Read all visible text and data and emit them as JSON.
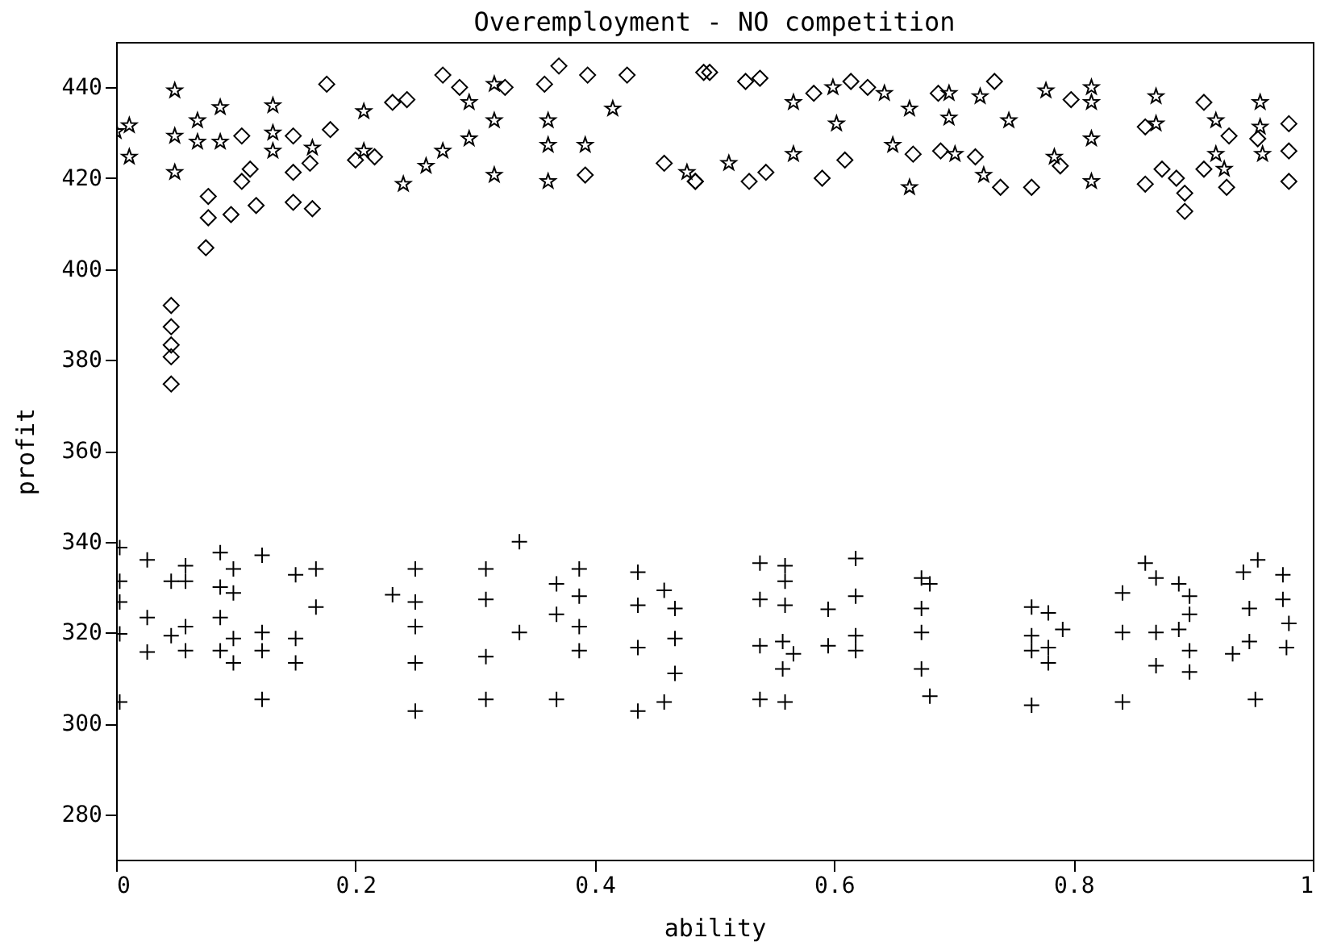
{
  "chart_data": {
    "type": "scatter",
    "title": "Overemployment - NO competition",
    "xlabel": "ability",
    "ylabel": "profit",
    "xlim": [
      0,
      1
    ],
    "ylim": [
      270,
      450
    ],
    "xticks": [
      0,
      0.2,
      0.4,
      0.6,
      0.8,
      1
    ],
    "yticks": [
      280,
      300,
      320,
      340,
      360,
      380,
      400,
      420,
      440
    ],
    "grid": false,
    "series": [
      {
        "color": "#000000",
        "marker": "star",
        "x": [
          0.0,
          0.011,
          0.011,
          0.049,
          0.049,
          0.049,
          0.068,
          0.068,
          0.087,
          0.087,
          0.131,
          0.131,
          0.131,
          0.164,
          0.207,
          0.207,
          0.24,
          0.259,
          0.273,
          0.295,
          0.295,
          0.316,
          0.316,
          0.316,
          0.361,
          0.361,
          0.361,
          0.392,
          0.415,
          0.477,
          0.512,
          0.566,
          0.566,
          0.599,
          0.602,
          0.642,
          0.649,
          0.663,
          0.663,
          0.696,
          0.696,
          0.701,
          0.722,
          0.725,
          0.746,
          0.777,
          0.784,
          0.815,
          0.815,
          0.815,
          0.815,
          0.869,
          0.869,
          0.919,
          0.919,
          0.956,
          0.958,
          0.956,
          0.926
        ],
        "values": [
          430.3,
          431.6,
          424.7,
          439.3,
          429.3,
          421.3,
          432.7,
          428.0,
          435.6,
          428.0,
          436.0,
          430.0,
          426.0,
          426.7,
          434.7,
          426.0,
          418.7,
          422.7,
          426.0,
          436.7,
          428.7,
          440.7,
          432.7,
          420.7,
          432.7,
          419.3,
          427.3,
          427.3,
          435.3,
          421.3,
          423.3,
          436.7,
          425.3,
          440.0,
          432.0,
          438.7,
          427.3,
          418.0,
          435.3,
          438.7,
          433.3,
          425.3,
          438.0,
          420.7,
          432.7,
          439.3,
          424.7,
          440.0,
          436.7,
          428.7,
          419.3,
          438.0,
          432.0,
          432.7,
          425.3,
          436.7,
          425.3,
          431.3,
          422.0
        ]
      },
      {
        "color": "#000000",
        "marker": "diamond",
        "x": [
          0.046,
          0.046,
          0.046,
          0.046,
          0.046,
          0.077,
          0.077,
          0.075,
          0.096,
          0.105,
          0.112,
          0.117,
          0.148,
          0.148,
          0.164,
          0.162,
          0.148,
          0.105,
          0.176,
          0.179,
          0.2,
          0.216,
          0.231,
          0.243,
          0.273,
          0.287,
          0.325,
          0.37,
          0.358,
          0.394,
          0.392,
          0.427,
          0.458,
          0.484,
          0.491,
          0.496,
          0.484,
          0.526,
          0.529,
          0.538,
          0.543,
          0.583,
          0.59,
          0.614,
          0.609,
          0.628,
          0.666,
          0.687,
          0.689,
          0.718,
          0.734,
          0.739,
          0.765,
          0.789,
          0.798,
          0.86,
          0.86,
          0.874,
          0.886,
          0.893,
          0.893,
          0.909,
          0.909,
          0.928,
          0.93,
          0.954,
          0.98,
          0.98,
          0.98
        ],
        "values": [
          392.0,
          387.3,
          383.3,
          380.7,
          374.7,
          416.0,
          411.3,
          404.7,
          412.0,
          419.3,
          422.0,
          414.0,
          421.3,
          414.7,
          413.3,
          423.3,
          429.3,
          429.3,
          440.7,
          430.7,
          424.0,
          424.7,
          436.7,
          437.3,
          442.7,
          440.0,
          440.0,
          444.7,
          440.7,
          442.7,
          420.7,
          442.7,
          423.3,
          419.3,
          443.3,
          443.3,
          419.3,
          441.3,
          419.3,
          442.0,
          421.3,
          438.7,
          420.0,
          441.3,
          424.0,
          440.0,
          425.3,
          438.7,
          426.0,
          424.7,
          441.3,
          418.0,
          418.0,
          422.7,
          437.3,
          431.3,
          418.7,
          422.0,
          420.0,
          416.7,
          412.7,
          436.7,
          422.0,
          418.0,
          429.3,
          428.7,
          432.0,
          426.0,
          419.3
        ]
      },
      {
        "color": "#000000",
        "marker": "cross",
        "x": [
          0.003,
          0.003,
          0.003,
          0.003,
          0.003,
          0.026,
          0.026,
          0.026,
          0.046,
          0.046,
          0.058,
          0.058,
          0.058,
          0.058,
          0.087,
          0.087,
          0.087,
          0.087,
          0.098,
          0.098,
          0.098,
          0.098,
          0.122,
          0.122,
          0.122,
          0.122,
          0.15,
          0.15,
          0.15,
          0.167,
          0.167,
          0.231,
          0.25,
          0.25,
          0.25,
          0.25,
          0.25,
          0.309,
          0.309,
          0.309,
          0.309,
          0.337,
          0.337,
          0.368,
          0.368,
          0.368,
          0.387,
          0.387,
          0.387,
          0.387,
          0.436,
          0.436,
          0.436,
          0.436,
          0.458,
          0.458,
          0.467,
          0.467,
          0.467,
          0.538,
          0.538,
          0.538,
          0.538,
          0.559,
          0.559,
          0.559,
          0.557,
          0.566,
          0.557,
          0.559,
          0.595,
          0.595,
          0.618,
          0.618,
          0.618,
          0.618,
          0.673,
          0.673,
          0.673,
          0.673,
          0.68,
          0.68,
          0.765,
          0.765,
          0.765,
          0.765,
          0.779,
          0.779,
          0.779,
          0.791,
          0.841,
          0.841,
          0.841,
          0.86,
          0.869,
          0.869,
          0.869,
          0.888,
          0.888,
          0.897,
          0.897,
          0.897,
          0.897,
          0.933,
          0.942,
          0.947,
          0.947,
          0.952,
          0.954,
          0.975,
          0.975,
          0.98,
          0.978
        ],
        "values": [
          338.7,
          331.3,
          326.7,
          319.7,
          304.7,
          336.0,
          323.3,
          315.7,
          331.3,
          319.3,
          316.0,
          334.7,
          331.3,
          321.3,
          337.6,
          330.0,
          323.3,
          316.0,
          334.0,
          328.7,
          318.7,
          313.3,
          305.3,
          320.0,
          337.0,
          316.0,
          332.7,
          318.7,
          313.3,
          334.0,
          325.6,
          328.3,
          334.0,
          326.7,
          321.3,
          313.3,
          302.7,
          334.0,
          327.3,
          314.7,
          305.3,
          340.0,
          320.0,
          330.7,
          324.0,
          305.3,
          334.0,
          328.0,
          316.0,
          321.3,
          333.3,
          326.0,
          316.7,
          302.7,
          304.7,
          329.3,
          325.3,
          318.7,
          311.0,
          335.3,
          327.3,
          317.1,
          305.3,
          334.7,
          331.3,
          326.0,
          318.0,
          315.3,
          312.0,
          304.7,
          325.1,
          317.1,
          336.3,
          328.0,
          319.3,
          316.0,
          332.0,
          325.3,
          320.0,
          312.0,
          330.7,
          306.0,
          325.6,
          319.3,
          316.0,
          304.0,
          324.3,
          316.7,
          313.3,
          320.7,
          328.7,
          320.0,
          304.7,
          335.3,
          332.0,
          320.0,
          312.7,
          330.7,
          320.7,
          328.0,
          324.0,
          316.0,
          311.3,
          315.3,
          333.3,
          325.3,
          318.0,
          305.3,
          336.0,
          332.7,
          327.3,
          322.0,
          316.7
        ]
      }
    ]
  }
}
